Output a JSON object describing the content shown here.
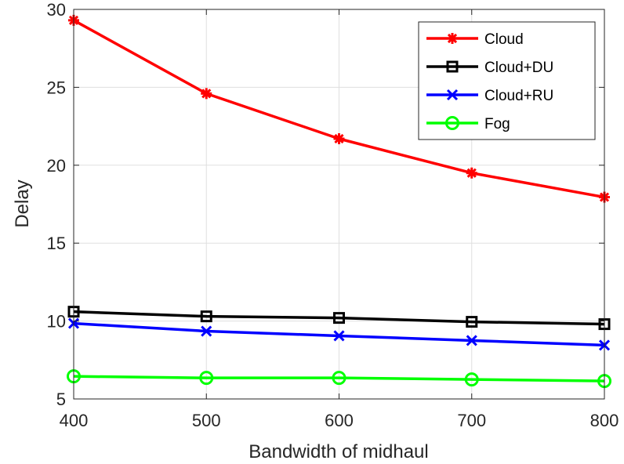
{
  "chart_data": {
    "type": "line",
    "title": "",
    "xlabel": "Bandwidth of midhaul",
    "ylabel": "Delay",
    "x": [
      400,
      500,
      600,
      700,
      800
    ],
    "xlim": [
      400,
      800
    ],
    "ylim": [
      5,
      30
    ],
    "xticks": [
      400,
      500,
      600,
      700,
      800
    ],
    "yticks": [
      5,
      10,
      15,
      20,
      25,
      30
    ],
    "grid": true,
    "legend_position": "top-right",
    "series": [
      {
        "name": "Cloud",
        "color": "#ff0000",
        "marker": "asterisk",
        "values": [
          29.3,
          24.6,
          21.7,
          19.5,
          17.95
        ]
      },
      {
        "name": "Cloud+DU",
        "color": "#000000",
        "marker": "square",
        "values": [
          10.6,
          10.3,
          10.2,
          9.95,
          9.8
        ]
      },
      {
        "name": "Cloud+RU",
        "color": "#0000ff",
        "marker": "x",
        "values": [
          9.85,
          9.35,
          9.05,
          8.75,
          8.45
        ]
      },
      {
        "name": "Fog",
        "color": "#00ff00",
        "marker": "circle",
        "values": [
          6.45,
          6.35,
          6.35,
          6.25,
          6.15
        ]
      }
    ]
  }
}
